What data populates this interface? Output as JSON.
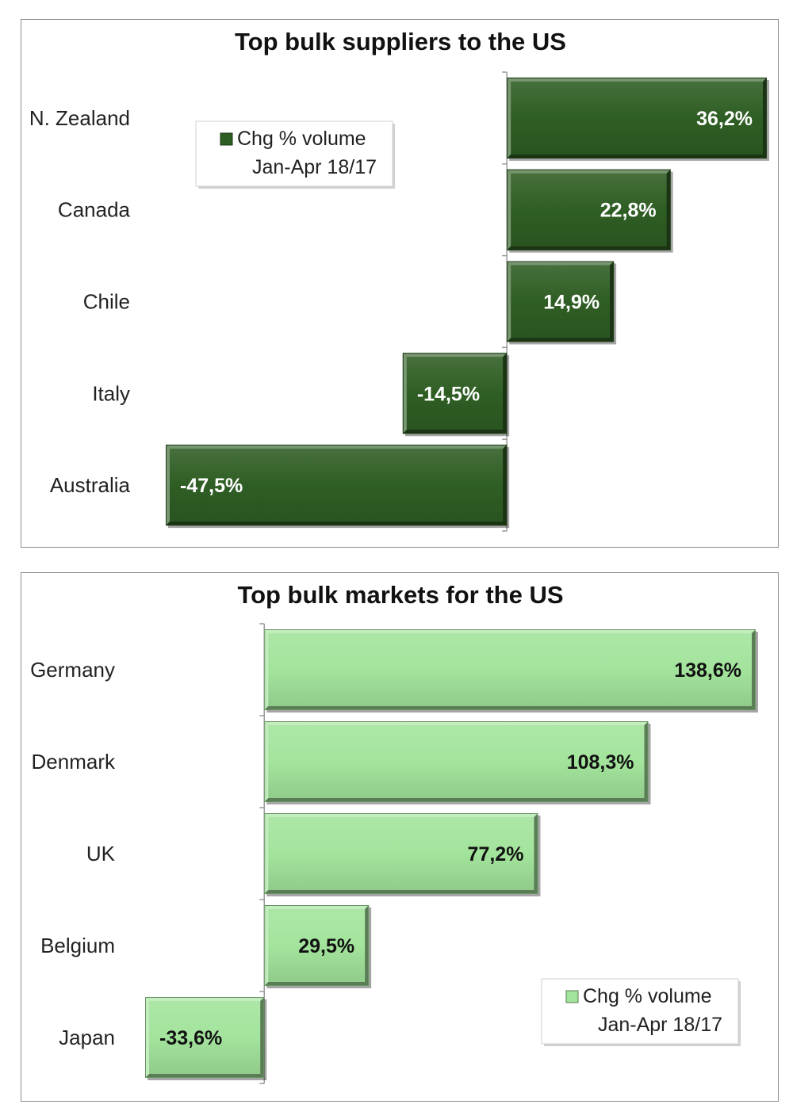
{
  "chart_data": [
    {
      "type": "bar",
      "orientation": "horizontal",
      "title": "Top bulk suppliers to the US",
      "categories": [
        "N. Zealand",
        "Canada",
        "Chile",
        "Italy",
        "Australia"
      ],
      "series": [
        {
          "name": "Chg % volume Jan-Apr 18/17",
          "values": [
            36.2,
            22.8,
            14.9,
            -14.5,
            -47.5
          ],
          "labels": [
            "36,2%",
            "22,8%",
            "14,9%",
            "-14,5%",
            "-47,5%"
          ]
        }
      ],
      "legend": {
        "line1": "Chg % volume",
        "line2": "Jan-Apr 18/17",
        "placement": "upper-left"
      },
      "bar_color": "#2f5e24",
      "label_color": "#ffffff",
      "xlim": [
        -47.5,
        36.2
      ],
      "grid": false
    },
    {
      "type": "bar",
      "orientation": "horizontal",
      "title": "Top bulk markets for the US",
      "categories": [
        "Germany",
        "Denmark",
        "UK",
        "Belgium",
        "Japan"
      ],
      "series": [
        {
          "name": "Chg % volume Jan-Apr 18/17",
          "values": [
            138.6,
            108.3,
            77.2,
            29.5,
            -33.6
          ],
          "labels": [
            "138,6%",
            "108,3%",
            "77,2%",
            "29,5%",
            "-33,6%"
          ]
        }
      ],
      "legend": {
        "line1": "Chg % volume",
        "line2": "Jan-Apr 18/17",
        "placement": "lower-right"
      },
      "bar_color": "#a3e49c",
      "label_color": "#111111",
      "xlim": [
        -33.6,
        138.6
      ],
      "grid": false
    }
  ]
}
